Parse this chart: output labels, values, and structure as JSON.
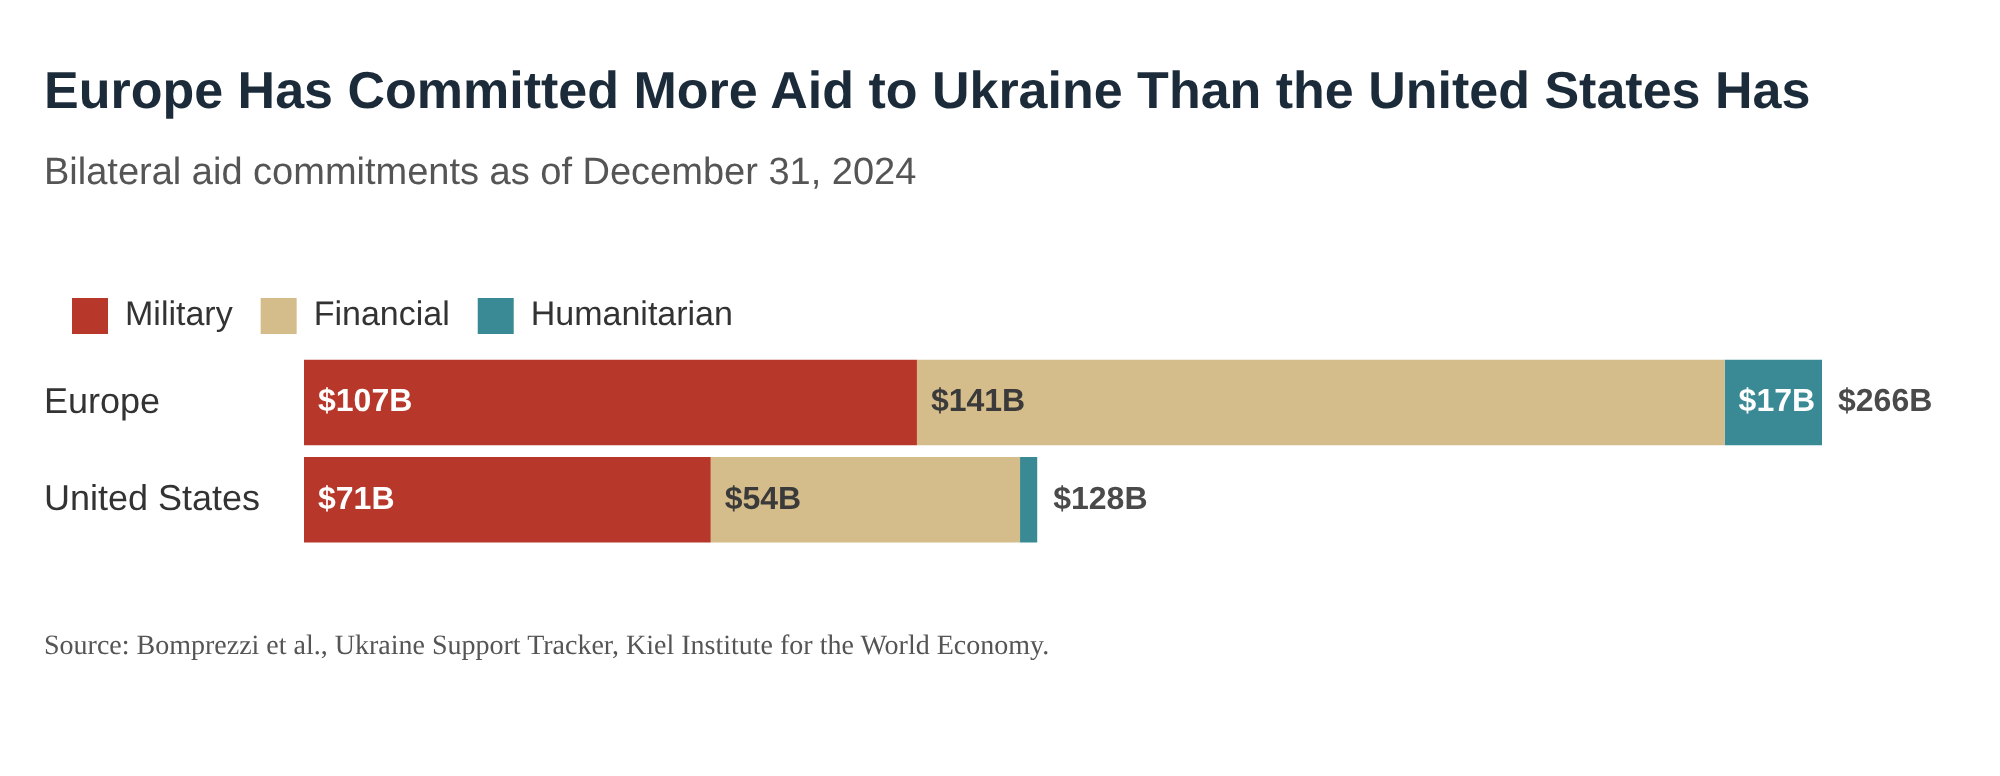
{
  "chart_data": {
    "type": "bar",
    "title": "Europe Has Committed More Aid to Ukraine Than the United States Has",
    "subtitle": "Bilateral aid commitments as of December 31, 2024",
    "orientation": "horizontal",
    "stacked": true,
    "legend": "top left",
    "categories": [
      "Europe",
      "United States"
    ],
    "series": [
      {
        "name": "Military",
        "color": "#b7372a",
        "values": [
          107,
          71
        ],
        "value_labels": [
          "$107B",
          "$71B"
        ]
      },
      {
        "name": "Financial",
        "color": "#d4bd8a",
        "values": [
          141,
          54
        ],
        "value_labels": [
          "$141B",
          "$54B"
        ]
      },
      {
        "name": "Humanitarian",
        "color": "#3a8a95",
        "values": [
          17,
          3
        ],
        "value_labels": [
          "$17B",
          null
        ]
      }
    ],
    "totals": [
      "$266B",
      "$128B"
    ],
    "annotations": [
      "Source: Bomprezzi et al., Ukraine Support Tracker, Kiel Institute for the World Economy."
    ]
  }
}
